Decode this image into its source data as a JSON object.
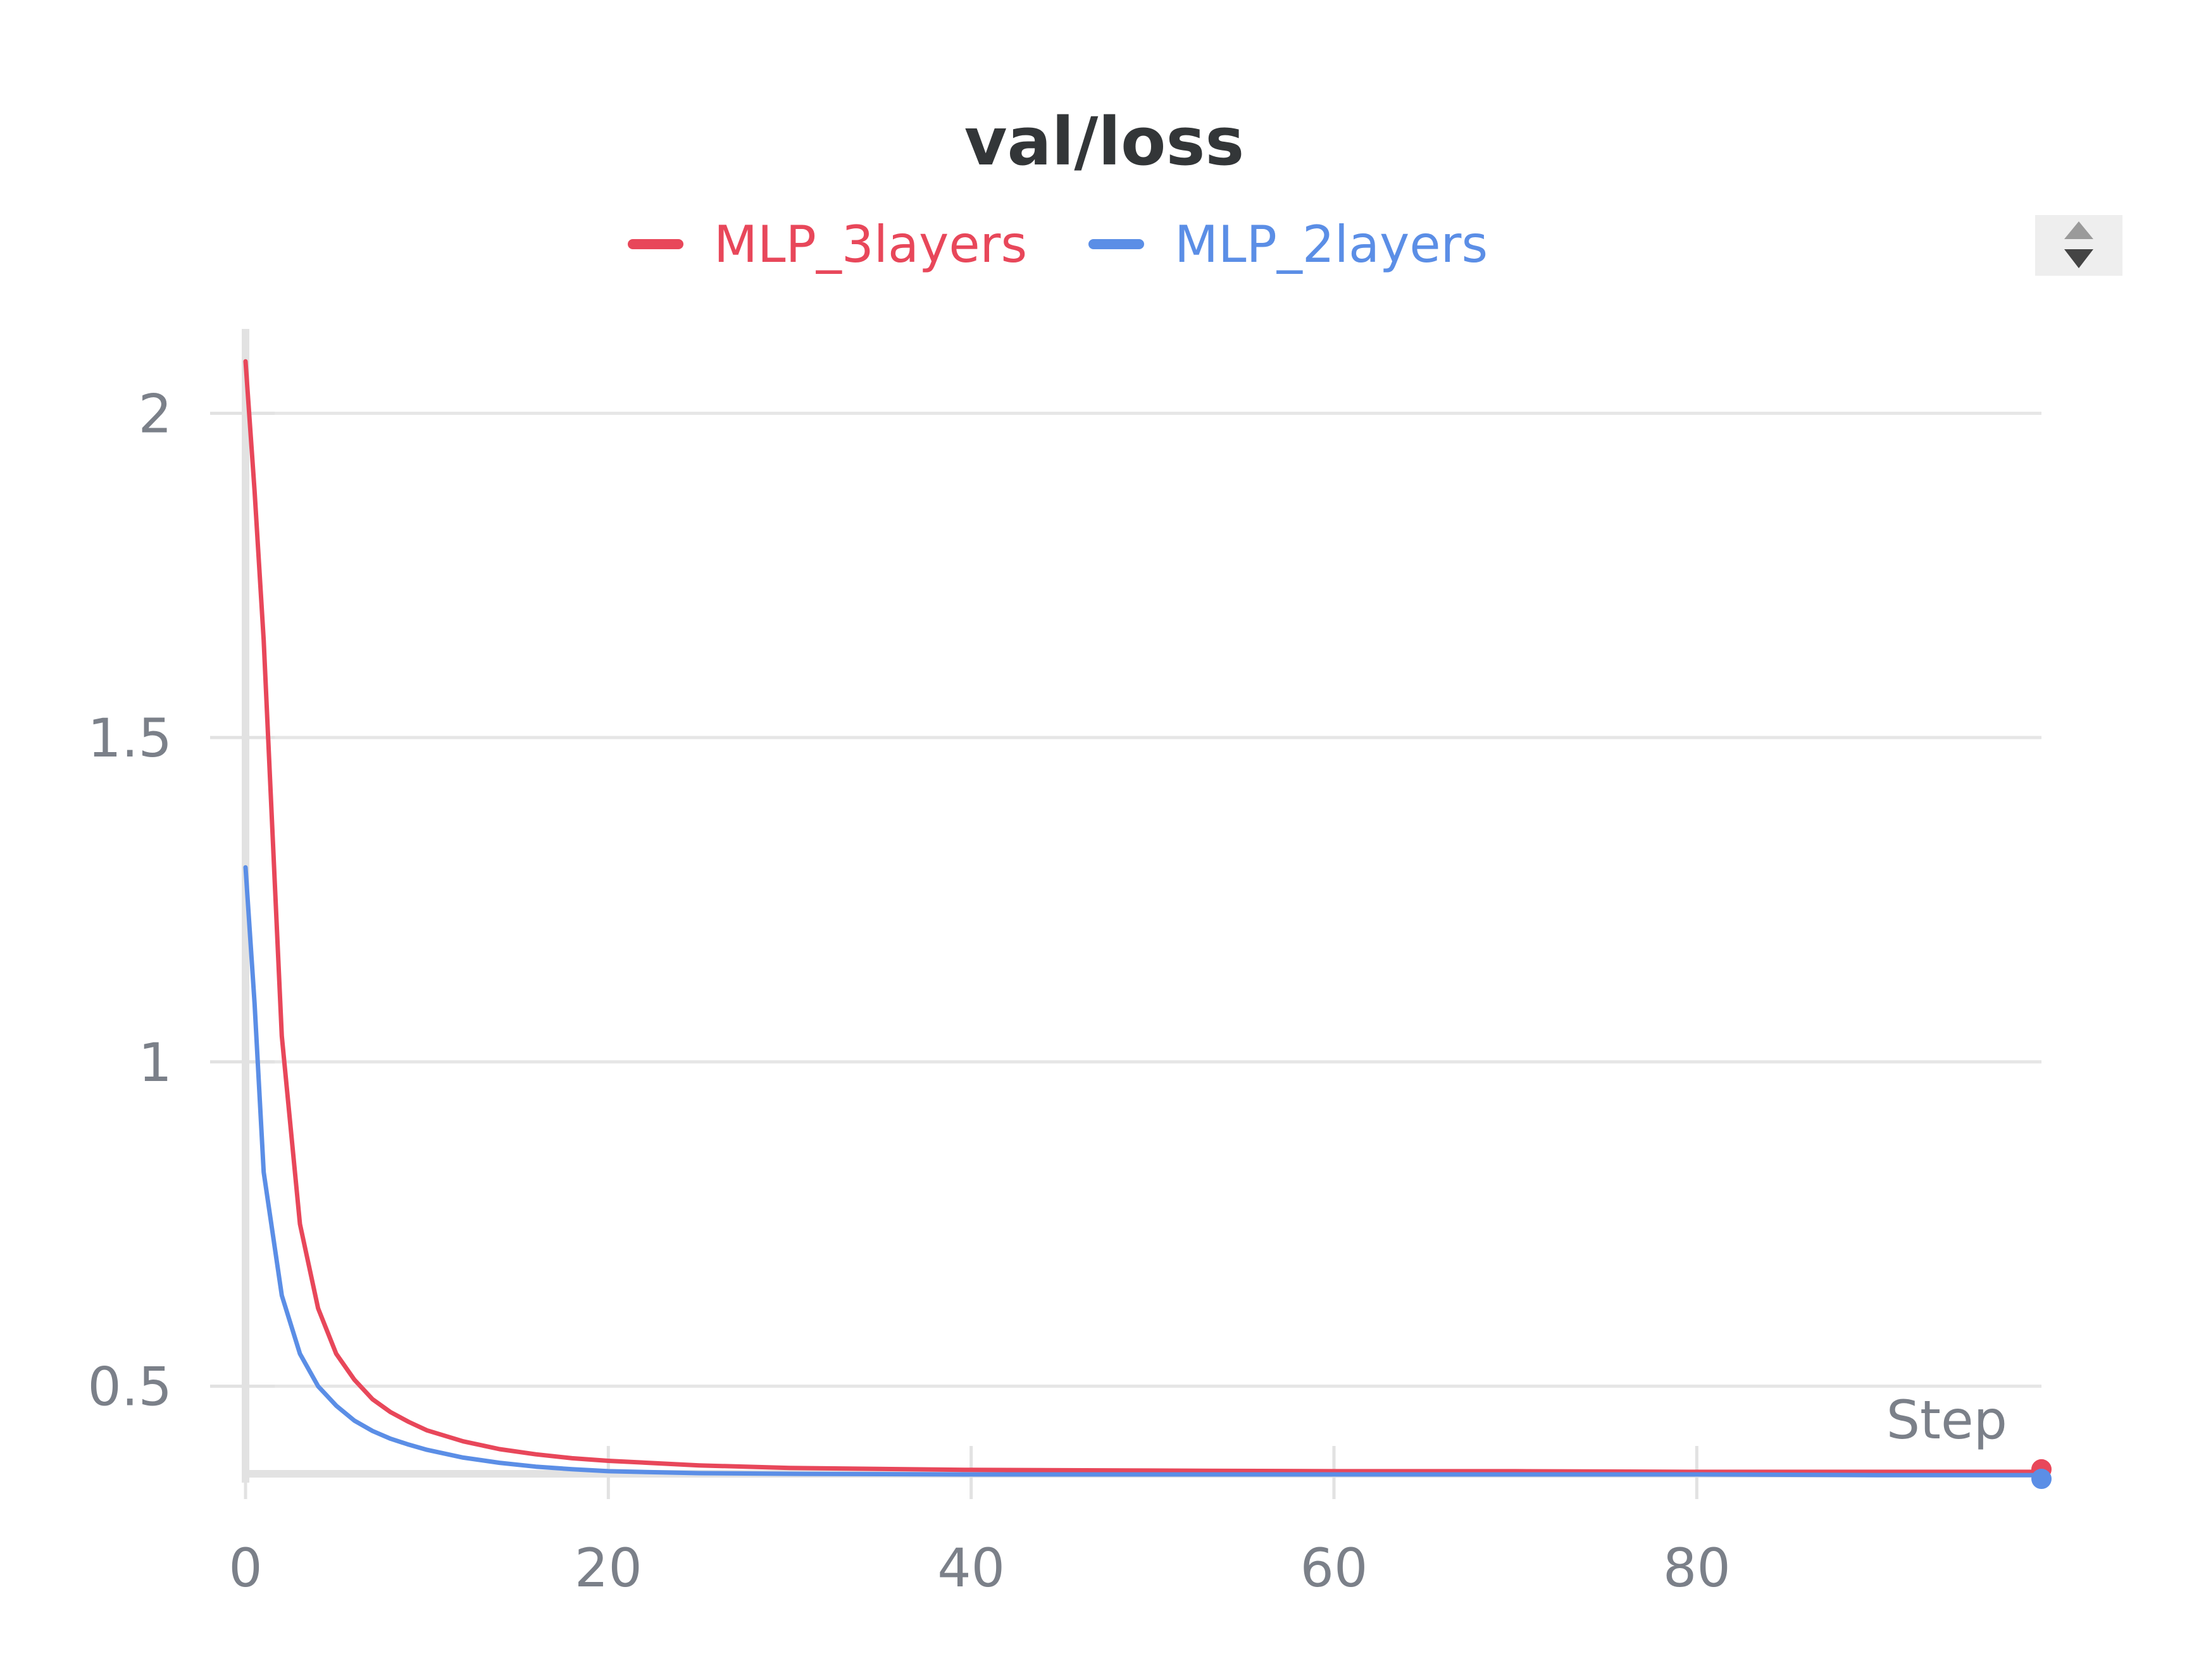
{
  "chart_data": {
    "type": "line",
    "title": "val/loss",
    "xlabel": "Step",
    "ylabel": "",
    "xlim": [
      0,
      99
    ],
    "ylim": [
      0.365,
      2.13
    ],
    "xticks": [
      0,
      20,
      40,
      60,
      80
    ],
    "xtick_labels": [
      "0",
      "20",
      "40",
      "60",
      "80"
    ],
    "yticks": [
      0.5,
      1,
      1.5,
      2
    ],
    "ytick_labels": [
      "0.5",
      "1",
      "1.5",
      "2"
    ],
    "grid": "horizontal",
    "legend": "top-center",
    "series": [
      {
        "name": "MLP_3layers",
        "color": "#e8475a",
        "x": [
          0,
          0.5,
          1,
          2,
          3,
          4,
          5,
          6,
          7,
          8,
          9,
          10,
          12,
          14,
          16,
          18,
          20,
          25,
          30,
          40,
          50,
          60,
          70,
          80,
          90,
          99
        ],
        "y": [
          2.08,
          1.88,
          1.65,
          1.04,
          0.75,
          0.62,
          0.55,
          0.51,
          0.48,
          0.46,
          0.445,
          0.432,
          0.415,
          0.403,
          0.395,
          0.389,
          0.385,
          0.378,
          0.374,
          0.371,
          0.37,
          0.369,
          0.369,
          0.368,
          0.368,
          0.368
        ]
      },
      {
        "name": "MLP_2layers",
        "color": "#5b8ee6",
        "x": [
          0,
          0.5,
          1,
          2,
          3,
          4,
          5,
          6,
          7,
          8,
          9,
          10,
          12,
          14,
          16,
          18,
          20,
          25,
          30,
          40,
          50,
          60,
          70,
          80,
          90,
          99
        ],
        "y": [
          1.3,
          1.09,
          0.83,
          0.64,
          0.55,
          0.5,
          0.47,
          0.447,
          0.431,
          0.419,
          0.41,
          0.402,
          0.39,
          0.382,
          0.376,
          0.372,
          0.369,
          0.366,
          0.365,
          0.364,
          0.364,
          0.364,
          0.364,
          0.364,
          0.363,
          0.363
        ]
      }
    ]
  },
  "controls": {
    "sort_up_icon": "triangle-up-icon",
    "sort_down_icon": "triangle-down-icon"
  }
}
